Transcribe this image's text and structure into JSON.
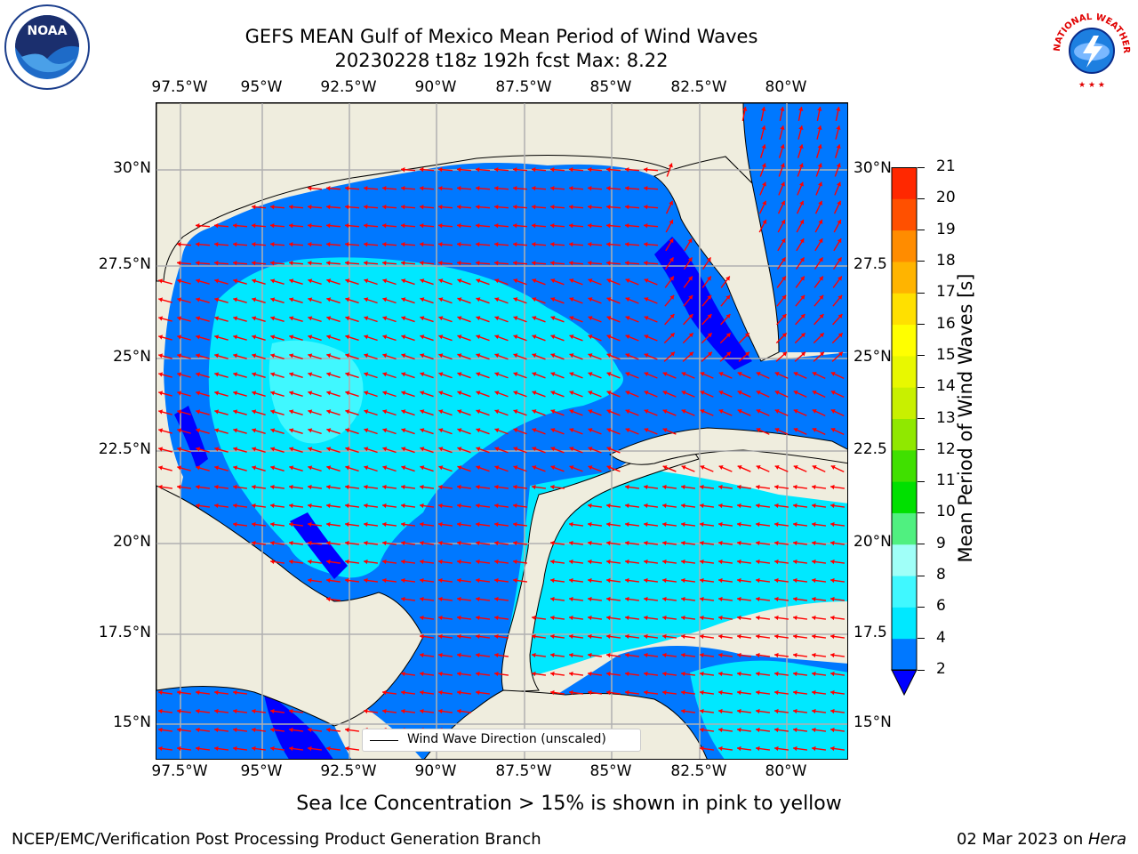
{
  "title": {
    "line1": "GEFS MEAN Gulf of Mexico Mean Period of Wind Waves",
    "line2": "20230228 t18z 192h fcst   Max: 8.22"
  },
  "logos": {
    "left_text": "NOAA",
    "right_text": "NATIONAL WEATHER SERVICE"
  },
  "map": {
    "lon_ticks": [
      "97.5°W",
      "95°W",
      "92.5°W",
      "90°W",
      "87.5°W",
      "85°W",
      "82.5°W",
      "80°W"
    ],
    "lat_ticks_left": [
      "30°N",
      "27.5°N",
      "25°N",
      "22.5°N",
      "20°N",
      "17.5°N",
      "15°N"
    ],
    "lat_ticks_right": [
      "30°N",
      "27.5",
      "25°N",
      "22.5",
      "20°N",
      "17.5",
      "15°N"
    ],
    "land_color": "#efedde",
    "arrow_color": "#ff0000",
    "grid_color": "#b0b0b0"
  },
  "colorbar": {
    "label": "Mean Period of Wind Waves [s]",
    "tick_labels": [
      "2",
      "4",
      "6",
      "8",
      "9",
      "10",
      "11",
      "12",
      "13",
      "14",
      "15",
      "16",
      "17",
      "18",
      "19",
      "20",
      "21"
    ],
    "colors": [
      "#0078ff",
      "#00e8ff",
      "#40f8ff",
      "#a0fff8",
      "#50f080",
      "#00e000",
      "#40e000",
      "#90e800",
      "#c8f000",
      "#e8f800",
      "#ffff00",
      "#ffe000",
      "#ffb400",
      "#ff8c00",
      "#ff5000",
      "#ff2800",
      "#ff0000"
    ],
    "under_color": "#0000ff"
  },
  "legend": {
    "label": "Wind Wave Direction (unscaled)"
  },
  "note": "Sea Ice Concentration > 15% is shown in pink to yellow",
  "footer": {
    "left": "NCEP/EMC/Verification Post Processing Product Generation Branch",
    "right_prefix": "02 Mar 2023 on ",
    "right_host": "Hera"
  }
}
